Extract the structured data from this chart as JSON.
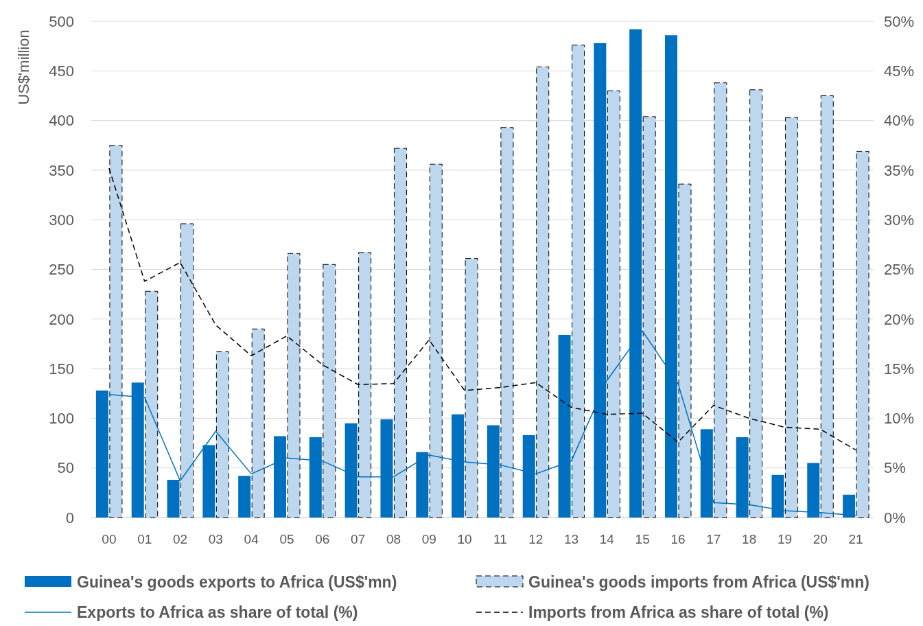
{
  "chart_data": {
    "type": "bar",
    "ylabel": "US$'million",
    "categories": [
      "00",
      "01",
      "02",
      "03",
      "04",
      "05",
      "06",
      "07",
      "08",
      "09",
      "10",
      "11",
      "12",
      "13",
      "14",
      "15",
      "16",
      "17",
      "18",
      "19",
      "20",
      "21"
    ],
    "series": [
      {
        "name": "Guinea's goods exports to Africa (US$'mn)",
        "color": "#0070c0",
        "values": [
          128,
          136,
          38,
          73,
          42,
          82,
          81,
          95,
          99,
          66,
          104,
          93,
          83,
          184,
          478,
          492,
          486,
          89,
          81,
          43,
          55,
          23
        ]
      },
      {
        "name": "Guinea's goods imports from Africa (US$'mn)",
        "color": "#bdd7ee",
        "line_style": "dashed",
        "values": [
          375,
          228,
          296,
          167,
          190,
          266,
          255,
          267,
          372,
          356,
          261,
          393,
          454,
          476,
          430,
          404,
          336,
          438,
          431,
          403,
          425,
          369
        ]
      },
      {
        "name": "Exports to Africa as share of total (%)",
        "type": "line",
        "axis": "y2",
        "color": "#0070c0",
        "line_style": "solid",
        "values": [
          12.4,
          12.1,
          3.7,
          8.7,
          4.4,
          6.0,
          5.7,
          4.1,
          4.1,
          6.3,
          5.6,
          5.3,
          4.4,
          5.7,
          13.8,
          18.8,
          13.5,
          1.5,
          1.3,
          0.7,
          0.5,
          0.2
        ]
      },
      {
        "name": "Imports from Africa as share of total (%)",
        "type": "line",
        "axis": "y2",
        "color": "#000000",
        "line_style": "dashed",
        "values": [
          35.2,
          23.8,
          25.7,
          19.4,
          16.3,
          18.3,
          15.4,
          13.4,
          13.5,
          17.9,
          12.8,
          13.1,
          13.6,
          11.1,
          10.4,
          10.5,
          7.6,
          11.3,
          10.0,
          9.1,
          8.9,
          6.8
        ]
      }
    ],
    "ylim": [
      0,
      500
    ],
    "yticks": [
      0,
      50,
      100,
      150,
      200,
      250,
      300,
      350,
      400,
      450,
      500
    ],
    "y2lim": [
      0,
      50
    ],
    "y2ticks": [
      {
        "value": 0,
        "label": "0%"
      },
      {
        "value": 5,
        "label": "5%"
      },
      {
        "value": 10,
        "label": "10%"
      },
      {
        "value": 15,
        "label": "15%"
      },
      {
        "value": 20,
        "label": "20%"
      },
      {
        "value": 25,
        "label": "25%"
      },
      {
        "value": 30,
        "label": "30%"
      },
      {
        "value": 35,
        "label": "35%"
      },
      {
        "value": 40,
        "label": "40%"
      },
      {
        "value": 45,
        "label": "45%"
      },
      {
        "value": 50,
        "label": "50%"
      }
    ],
    "grid": "y",
    "legend": "bottom"
  }
}
